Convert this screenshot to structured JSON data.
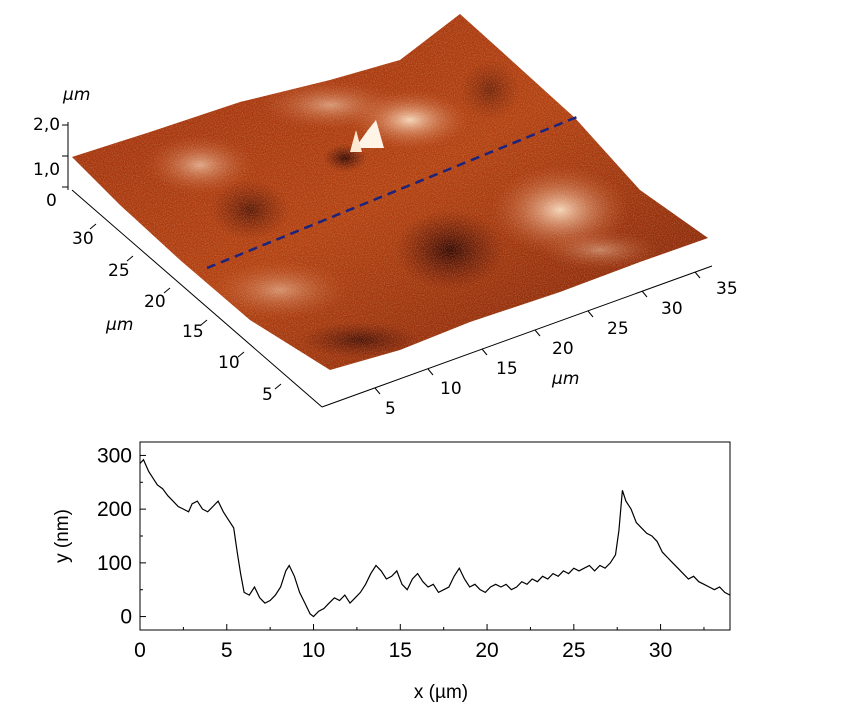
{
  "afm_image": {
    "z_unit": "µm",
    "z_ticks": [
      "2,0",
      "1,0",
      "0"
    ],
    "left_axis_unit": "µm",
    "left_axis_ticks": [
      "30",
      "25",
      "20",
      "15",
      "10",
      "5"
    ],
    "right_axis_unit": "µm",
    "right_axis_ticks": [
      "5",
      "10",
      "15",
      "20",
      "25",
      "30",
      "35"
    ],
    "surface_colors": {
      "dark": "#3a0800",
      "mid": "#a8320e",
      "light": "#f3d2b4"
    },
    "profile_line_color": "#1a237e"
  },
  "chart_data": {
    "type": "line",
    "xlabel": "x (µm)",
    "ylabel": "y (nm)",
    "xlim": [
      0,
      34
    ],
    "ylim": [
      -25,
      325
    ],
    "xticks": [
      "0",
      "5",
      "10",
      "15",
      "20",
      "25",
      "30"
    ],
    "yticks": [
      "0",
      "100",
      "200",
      "300"
    ],
    "grid": false,
    "series": [
      {
        "x": [
          0,
          0.2,
          0.5,
          0.8,
          1.0,
          1.3,
          1.6,
          1.9,
          2.2,
          2.5,
          2.8,
          3.0,
          3.3,
          3.6,
          3.9,
          4.2,
          4.5,
          4.8,
          5.1,
          5.4,
          5.6,
          5.8,
          6.0,
          6.3,
          6.6,
          6.9,
          7.2,
          7.5,
          7.8,
          8.1,
          8.4,
          8.6,
          8.9,
          9.2,
          9.5,
          9.8,
          10.0,
          10.3,
          10.6,
          10.9,
          11.2,
          11.5,
          11.8,
          12.1,
          12.4,
          12.7,
          13.0,
          13.3,
          13.6,
          13.9,
          14.2,
          14.5,
          14.8,
          15.1,
          15.4,
          15.7,
          16.0,
          16.3,
          16.6,
          16.9,
          17.2,
          17.5,
          17.8,
          18.1,
          18.4,
          18.7,
          19.0,
          19.3,
          19.6,
          19.9,
          20.2,
          20.5,
          20.8,
          21.1,
          21.4,
          21.7,
          22.0,
          22.3,
          22.6,
          22.9,
          23.2,
          23.5,
          23.8,
          24.1,
          24.4,
          24.7,
          25.0,
          25.3,
          25.6,
          25.9,
          26.2,
          26.5,
          26.8,
          27.1,
          27.4,
          27.6,
          27.8,
          28.0,
          28.3,
          28.6,
          28.9,
          29.2,
          29.5,
          29.8,
          30.1,
          30.4,
          30.7,
          31.0,
          31.3,
          31.6,
          31.9,
          32.2,
          32.5,
          32.8,
          33.1,
          33.4,
          33.7,
          34.0
        ],
        "values": [
          285,
          292,
          270,
          255,
          245,
          238,
          225,
          215,
          205,
          200,
          195,
          210,
          215,
          200,
          195,
          205,
          215,
          195,
          180,
          165,
          120,
          80,
          45,
          40,
          55,
          35,
          25,
          30,
          40,
          55,
          85,
          95,
          75,
          45,
          25,
          5,
          0,
          10,
          15,
          25,
          35,
          30,
          40,
          25,
          35,
          45,
          60,
          80,
          95,
          85,
          70,
          75,
          85,
          60,
          50,
          70,
          80,
          65,
          55,
          60,
          45,
          50,
          55,
          75,
          90,
          70,
          55,
          60,
          50,
          45,
          55,
          60,
          55,
          60,
          50,
          55,
          65,
          60,
          70,
          65,
          75,
          70,
          80,
          75,
          85,
          80,
          90,
          85,
          90,
          95,
          85,
          95,
          90,
          100,
          115,
          160,
          235,
          215,
          200,
          175,
          165,
          155,
          150,
          140,
          120,
          110,
          100,
          90,
          80,
          70,
          75,
          65,
          60,
          55,
          50,
          55,
          45,
          40
        ]
      }
    ]
  }
}
